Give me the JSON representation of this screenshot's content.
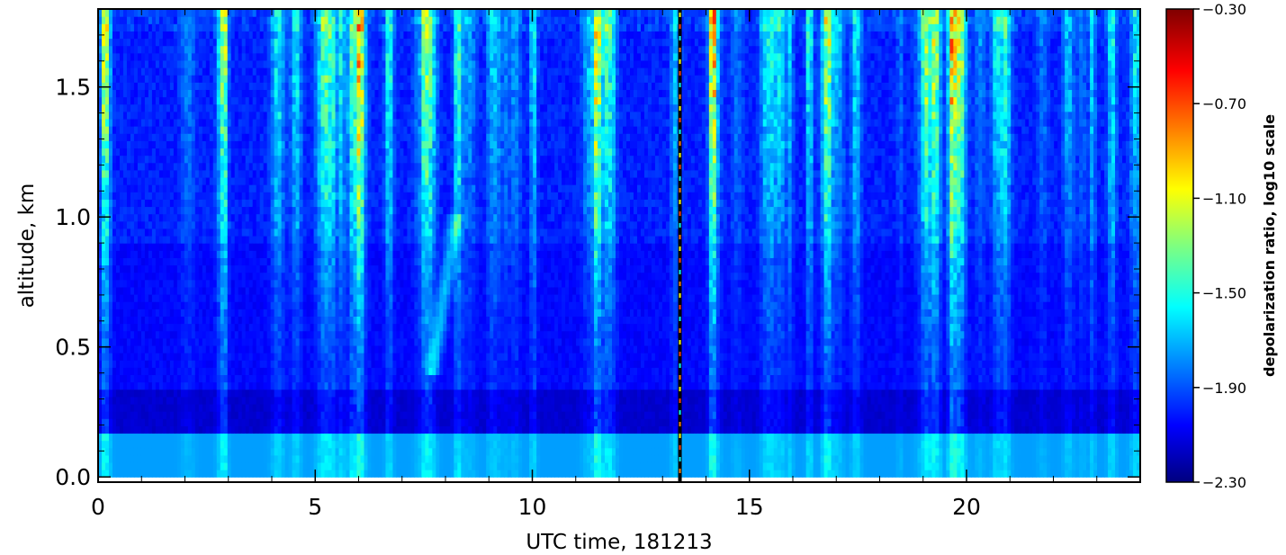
{
  "chart_data": {
    "type": "heatmap",
    "title": "",
    "xlabel": "UTC time, 181213",
    "ylabel": "altitude, km",
    "xlim": [
      0,
      24
    ],
    "ylim": [
      -0.02,
      1.8
    ],
    "x_ticks": [
      0,
      5,
      10,
      15,
      20
    ],
    "x_tick_labels": [
      "0",
      "5",
      "10",
      "15",
      "20"
    ],
    "y_ticks": [
      0.0,
      0.5,
      1.0,
      1.5
    ],
    "y_tick_labels": [
      "0.0",
      "0.5",
      "1.0",
      "1.5"
    ],
    "colorbar": {
      "label": "depolarization ratio, log10 scale",
      "scale": "log10",
      "range": [
        -2.3,
        -0.3
      ],
      "ticks": [
        -2.3,
        -1.9,
        -1.5,
        -1.1,
        -0.7,
        -0.3
      ],
      "tick_labels": [
        "−2.30",
        "−1.90",
        "−1.50",
        "−1.10",
        "−0.70",
        "−0.30"
      ],
      "colormap": "rainbow (dark blue to dark red)"
    },
    "grid": false,
    "notable_features": {
      "data_gap_time_utc": 13.4,
      "background_value": -2.0,
      "low_layer_value_0_to_0_17km": -1.75,
      "layer_value_0_17_to_0_33km": -2.15
    }
  }
}
